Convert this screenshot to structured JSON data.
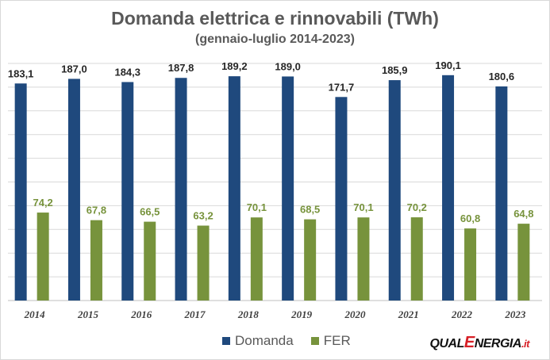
{
  "chart_data": {
    "type": "bar",
    "title": "Domanda elettrica e rinnovabili (TWh)",
    "subtitle": "(gennaio-luglio 2014-2023)",
    "categories": [
      "2014",
      "2015",
      "2016",
      "2017",
      "2018",
      "2019",
      "2020",
      "2021",
      "2022",
      "2023"
    ],
    "series": [
      {
        "name": "Domanda",
        "color": "#1f497d",
        "values": [
          183.1,
          187.0,
          184.3,
          187.8,
          189.2,
          189.0,
          171.7,
          185.9,
          190.1,
          180.6
        ],
        "labels": [
          "183,1",
          "187,0",
          "184,3",
          "187,8",
          "189,2",
          "189,0",
          "171,7",
          "185,9",
          "190,1",
          "180,6"
        ]
      },
      {
        "name": "FER",
        "color": "#77933c",
        "values": [
          74.2,
          67.8,
          66.5,
          63.2,
          70.1,
          68.5,
          70.1,
          70.2,
          60.8,
          64.8
        ],
        "labels": [
          "74,2",
          "67,8",
          "66,5",
          "63,2",
          "70,1",
          "68,5",
          "70,1",
          "70,2",
          "60,8",
          "64,8"
        ]
      }
    ],
    "ylim": [
      0,
      200
    ],
    "grid": true,
    "legend": "bottom",
    "data_label_colors": {
      "Domanda": "#262626",
      "FER": "#77933c"
    }
  },
  "logo": {
    "pre": "QUAL",
    "e": "E",
    "post": "NERGIA",
    "suffix": ".it"
  }
}
